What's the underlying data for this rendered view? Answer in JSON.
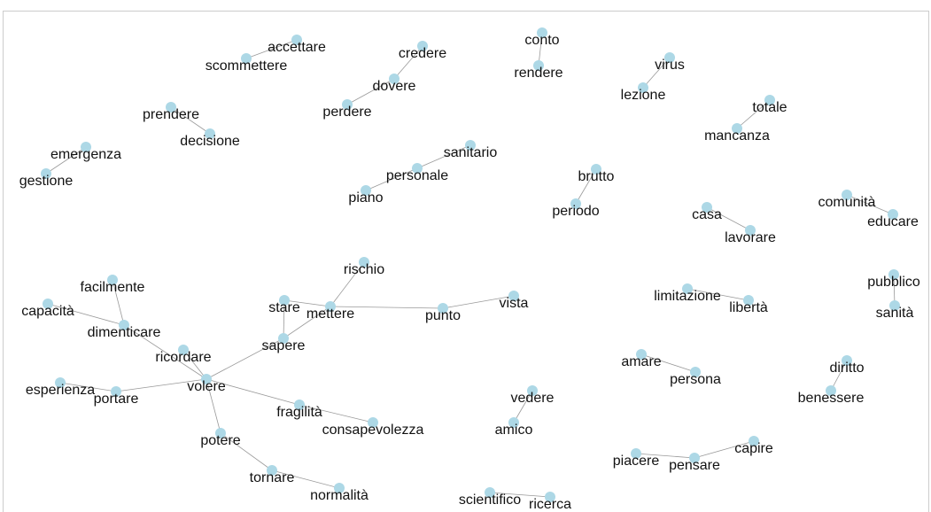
{
  "nodes": [
    {
      "label": "accettare"
    },
    {
      "label": "scommettere"
    },
    {
      "label": "credere"
    },
    {
      "label": "dovere"
    },
    {
      "label": "perdere"
    },
    {
      "label": "conto"
    },
    {
      "label": "rendere"
    },
    {
      "label": "virus"
    },
    {
      "label": "lezione"
    },
    {
      "label": "totale"
    },
    {
      "label": "mancanza"
    },
    {
      "label": "prendere"
    },
    {
      "label": "decisione"
    },
    {
      "label": "emergenza"
    },
    {
      "label": "gestione"
    },
    {
      "label": "sanitario"
    },
    {
      "label": "personale"
    },
    {
      "label": "piano"
    },
    {
      "label": "brutto"
    },
    {
      "label": "periodo"
    },
    {
      "label": "casa"
    },
    {
      "label": "lavorare"
    },
    {
      "label": "comunità"
    },
    {
      "label": "educare"
    },
    {
      "label": "rischio"
    },
    {
      "label": "stare"
    },
    {
      "label": "mettere"
    },
    {
      "label": "punto"
    },
    {
      "label": "vista"
    },
    {
      "label": "sapere"
    },
    {
      "label": "facilmente"
    },
    {
      "label": "capacità"
    },
    {
      "label": "dimenticare"
    },
    {
      "label": "ricordare"
    },
    {
      "label": "volere"
    },
    {
      "label": "esperienza"
    },
    {
      "label": "portare"
    },
    {
      "label": "fragilità"
    },
    {
      "label": "consapevolezza"
    },
    {
      "label": "potere"
    },
    {
      "label": "tornare"
    },
    {
      "label": "normalità"
    },
    {
      "label": "limitazione"
    },
    {
      "label": "libertà"
    },
    {
      "label": "pubblico"
    },
    {
      "label": "sanità"
    },
    {
      "label": "amare"
    },
    {
      "label": "persona"
    },
    {
      "label": "diritto"
    },
    {
      "label": "benessere"
    },
    {
      "label": "vedere"
    },
    {
      "label": "amico"
    },
    {
      "label": "capire"
    },
    {
      "label": "pensare"
    },
    {
      "label": "piacere"
    },
    {
      "label": "scientifico"
    },
    {
      "label": "ricerca"
    }
  ]
}
